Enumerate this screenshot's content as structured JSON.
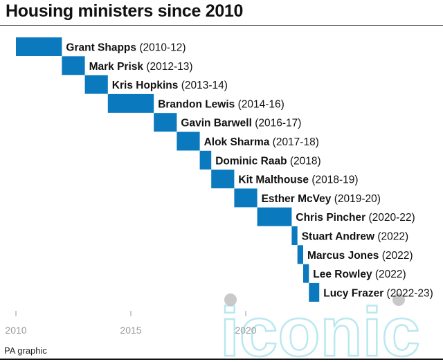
{
  "chart_data": {
    "type": "bar",
    "title": "Housing ministers since 2010",
    "xlabel": "",
    "ylabel": "",
    "xlim": [
      2010,
      2023.6
    ],
    "x_ticks": [
      2010,
      2015,
      2020
    ],
    "x_tick_labels": [
      "2010",
      "2015",
      "2020"
    ],
    "colors": {
      "bar": "#0a79bd",
      "axis": "#999999",
      "text": "#111111"
    },
    "ministers": [
      {
        "name": "Grant Shapps",
        "period": "(2010-12)",
        "start": 2010.0,
        "end": 2012.0
      },
      {
        "name": "Mark Prisk",
        "period": "(2012-13)",
        "start": 2012.0,
        "end": 2013.0
      },
      {
        "name": "Kris Hopkins",
        "period": "(2013-14)",
        "start": 2013.0,
        "end": 2014.0
      },
      {
        "name": "Brandon Lewis",
        "period": "(2014-16)",
        "start": 2014.0,
        "end": 2016.0
      },
      {
        "name": "Gavin Barwell",
        "period": "(2016-17)",
        "start": 2016.0,
        "end": 2017.0
      },
      {
        "name": "Alok Sharma",
        "period": "(2017-18)",
        "start": 2017.0,
        "end": 2018.0
      },
      {
        "name": "Dominic Raab",
        "period": "(2018)",
        "start": 2018.0,
        "end": 2018.5
      },
      {
        "name": "Kit Malthouse",
        "period": "(2018-19)",
        "start": 2018.5,
        "end": 2019.5
      },
      {
        "name": "Esther McVey",
        "period": "(2019-20)",
        "start": 2019.5,
        "end": 2020.5
      },
      {
        "name": "Chris Pincher",
        "period": "(2020-22)",
        "start": 2020.5,
        "end": 2022.0
      },
      {
        "name": "Stuart Andrew",
        "period": "(2022)",
        "start": 2022.0,
        "end": 2022.25
      },
      {
        "name": "Marcus Jones",
        "period": "(2022)",
        "start": 2022.25,
        "end": 2022.5
      },
      {
        "name": "Lee Rowley",
        "period": "(2022)",
        "start": 2022.5,
        "end": 2022.75
      },
      {
        "name": "Lucy Frazer",
        "period": "(2022-23)",
        "start": 2022.75,
        "end": 2023.2
      }
    ]
  },
  "footer": {
    "source": "PA graphic"
  },
  "watermark": {
    "text": "iconic"
  }
}
